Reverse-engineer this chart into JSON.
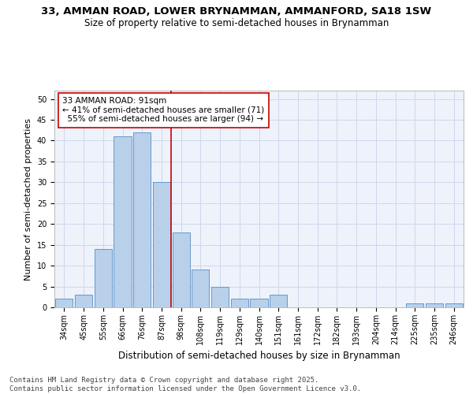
{
  "title_line1": "33, AMMAN ROAD, LOWER BRYNAMMAN, AMMANFORD, SA18 1SW",
  "title_line2": "Size of property relative to semi-detached houses in Brynamman",
  "xlabel": "Distribution of semi-detached houses by size in Brynamman",
  "ylabel": "Number of semi-detached properties",
  "categories": [
    "34sqm",
    "45sqm",
    "55sqm",
    "66sqm",
    "76sqm",
    "87sqm",
    "98sqm",
    "108sqm",
    "119sqm",
    "129sqm",
    "140sqm",
    "151sqm",
    "161sqm",
    "172sqm",
    "182sqm",
    "193sqm",
    "204sqm",
    "214sqm",
    "225sqm",
    "235sqm",
    "246sqm"
  ],
  "values": [
    2,
    3,
    14,
    41,
    42,
    30,
    18,
    9,
    5,
    2,
    2,
    3,
    0,
    0,
    0,
    0,
    0,
    0,
    1,
    1,
    1
  ],
  "bar_color": "#b8d0ea",
  "bar_edge_color": "#6699cc",
  "grid_color": "#ccd8ec",
  "background_color": "#eef2fa",
  "vline_color": "#cc0000",
  "vline_x": 5.5,
  "annotation_text": "33 AMMAN ROAD: 91sqm\n← 41% of semi-detached houses are smaller (71)\n  55% of semi-detached houses are larger (94) →",
  "annotation_box_color": "#ffffff",
  "annotation_box_edge": "#cc0000",
  "ylim": [
    0,
    52
  ],
  "yticks": [
    0,
    5,
    10,
    15,
    20,
    25,
    30,
    35,
    40,
    45,
    50
  ],
  "footer_text": "Contains HM Land Registry data © Crown copyright and database right 2025.\nContains public sector information licensed under the Open Government Licence v3.0.",
  "title_fontsize": 9.5,
  "subtitle_fontsize": 8.5,
  "ylabel_fontsize": 8,
  "xlabel_fontsize": 8.5,
  "annotation_fontsize": 7.5,
  "tick_fontsize": 7,
  "footer_fontsize": 6.5
}
